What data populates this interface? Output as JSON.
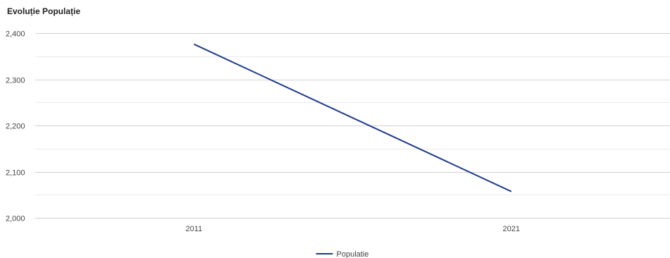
{
  "chart_data": {
    "type": "line",
    "title": "Evoluție Populație",
    "xlabel": "",
    "ylabel": "",
    "categories": [
      "2011",
      "2021"
    ],
    "series": [
      {
        "name": "Populatie",
        "values": [
          2376,
          2057
        ]
      }
    ],
    "ylim": [
      2000,
      2400
    ],
    "yticks": [
      2000,
      2100,
      2200,
      2300,
      2400
    ],
    "ytick_labels": [
      "2,000",
      "2,100",
      "2,200",
      "2,300",
      "2,400"
    ],
    "grid": true,
    "legend": "bottom-center",
    "colors": {
      "series": "#1f3b8c",
      "grid_major": "#d0d0d0",
      "grid_minor": "#ececec"
    }
  }
}
